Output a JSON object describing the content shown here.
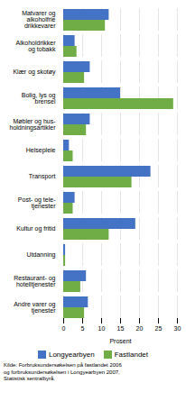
{
  "chart_data": {
    "type": "bar",
    "orientation": "horizontal",
    "categories": [
      "Matvarer og\nalkoholfrie\ndrikkevarer",
      "Alkoholdrikker\nog tobakk",
      "Klær og skotøy",
      "Bolig, lys og\nbrensel",
      "Møbler og hus-\nholdningsartikler",
      "Helsepleie",
      "Transport",
      "Post- og tele-\ntjenester",
      "Kultur og fritid",
      "Utdanning",
      "Restaurant- og\nhotelltjenester",
      "Andre varer og\ntjenester"
    ],
    "series": [
      {
        "name": "Longyearbyen",
        "color": "#4472C4",
        "values": [
          12,
          3,
          7,
          15,
          7,
          1.5,
          23,
          3,
          19,
          0.5,
          6,
          6.5
        ]
      },
      {
        "name": "Fastlandet",
        "color": "#70AD47",
        "values": [
          11,
          3.5,
          5.5,
          29,
          6,
          2.5,
          18,
          2.5,
          12,
          0.5,
          4.5,
          5.5
        ]
      }
    ],
    "xlabel": "Prosent",
    "xlim": [
      0,
      30
    ],
    "xticks": [
      0,
      5,
      10,
      15,
      20,
      25,
      30
    ],
    "grid": true,
    "legend": "bottom",
    "caption": "Kilde: Forbruksundersøkelsen på fastlandet 2006\nog forbruksundersøkelsen i Longyearbyen 2007,\nStatistisk sentralbyrå."
  }
}
